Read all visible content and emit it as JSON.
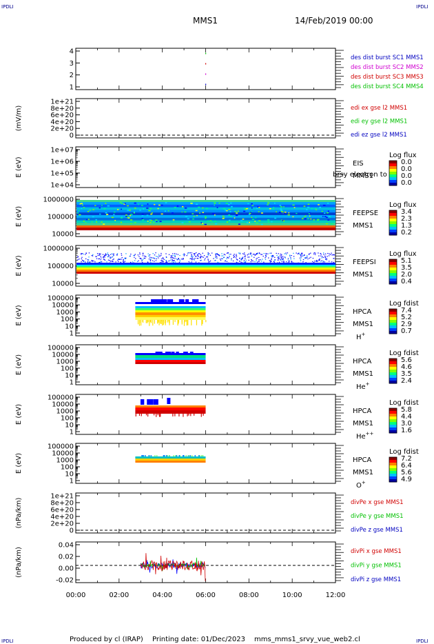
{
  "header": {
    "corner_label": "IPDLI",
    "mission": "MMS1",
    "datetime": "14/Feb/2019 00:00"
  },
  "footer": {
    "produced_by": "Produced by cl (IRAP)",
    "printing_date": "Printing date: 01/Dec/2023",
    "script_name": "mms_mms1_srvy_vue_web2.cl"
  },
  "chart_data": [
    {
      "type": "line",
      "panel": "des_dist_burst",
      "yticks": [
        "4",
        "3",
        "2",
        "1"
      ],
      "ylim": [
        0.5,
        4.5
      ],
      "legend": [
        {
          "label": "des dist burst SC1 MMS1",
          "color": "#0000c0"
        },
        {
          "label": "des dist burst SC2 MMS2",
          "color": "#d000d0"
        },
        {
          "label": "des dist burst SC3 MMS3",
          "color": "#d00000"
        },
        {
          "label": "des dist burst SC4 MMS4",
          "color": "#00c000"
        }
      ],
      "series": [
        {
          "name": "des dist burst SC1 MMS1",
          "x": [
            6.0
          ],
          "y": [
            1
          ]
        },
        {
          "name": "des dist burst SC2 MMS2",
          "x": [
            6.0
          ],
          "y": [
            2
          ]
        },
        {
          "name": "des dist burst SC3 MMS3",
          "x": [
            6.0
          ],
          "y": [
            3
          ]
        },
        {
          "name": "des dist burst SC4 MMS4",
          "x": [
            6.0
          ],
          "y": [
            4
          ]
        }
      ]
    },
    {
      "type": "line",
      "panel": "edi_e_gse",
      "ylabel": "(mV/m)",
      "yticks": [
        "1e+21",
        "8e+20",
        "6e+20",
        "4e+20",
        "2e+20",
        "0"
      ],
      "ylim": [
        0,
        1e+21
      ],
      "zero_line": true,
      "legend": [
        {
          "label": "edi ex gse l2 MMS1",
          "color": "#d00000"
        },
        {
          "label": "edi ey gse l2 MMS1",
          "color": "#00c000"
        },
        {
          "label": "edi ez gse l2 MMS1",
          "color": "#0000c0"
        }
      ]
    },
    {
      "type": "heatmap",
      "panel": "eis",
      "ylabel": "E (eV)",
      "yticks": [
        "1e+07",
        "1e+06",
        "1e+05",
        "1e+04"
      ],
      "ylim": [
        10000.0,
        10000000.0
      ],
      "log_y": true,
      "instrument": "EIS",
      "spacecraft": "MMS1",
      "overlay_text": "brsy electron to",
      "colorbar": {
        "title": "Log flux",
        "ticks": [
          "0.0",
          "0.0",
          "0.0",
          "0.0"
        ]
      }
    },
    {
      "type": "heatmap",
      "panel": "feeps_electron",
      "ylabel": "E (eV)",
      "yticks": [
        "1000000",
        "100000",
        "10000"
      ],
      "ylim": [
        10000.0,
        1000000.0
      ],
      "log_y": true,
      "instrument": "FEEPSE",
      "spacecraft": "MMS1",
      "colorbar": {
        "title": "Log flux",
        "ticks": [
          "3.4",
          "2.3",
          "1.3",
          "0.2"
        ]
      },
      "coverage_hours": [
        0,
        12
      ]
    },
    {
      "type": "heatmap",
      "panel": "feeps_ion",
      "ylabel": "E (eV)",
      "yticks": [
        "1000000",
        "100000",
        "10000"
      ],
      "ylim": [
        10000.0,
        1000000.0
      ],
      "log_y": true,
      "instrument": "FEEPSI",
      "spacecraft": "MMS1",
      "colorbar": {
        "title": "Log flux",
        "ticks": [
          "5.1",
          "3.5",
          "2.0",
          "0.4"
        ]
      },
      "coverage_hours": [
        0,
        12
      ]
    },
    {
      "type": "heatmap",
      "panel": "hpca_h",
      "ylabel": "E (eV)",
      "yticks": [
        "100000",
        "10000",
        "1000",
        "100",
        "10",
        "1"
      ],
      "ylim": [
        1,
        100000.0
      ],
      "log_y": true,
      "instrument": "HPCA",
      "spacecraft": "MMS1",
      "species": "H",
      "species_sup": "+",
      "colorbar": {
        "title": "Log fdist",
        "ticks": [
          "7.4",
          "5.2",
          "2.9",
          "0.7"
        ]
      },
      "coverage_hours": [
        2.75,
        6.0
      ]
    },
    {
      "type": "heatmap",
      "panel": "hpca_he",
      "ylabel": "E (eV)",
      "yticks": [
        "100000",
        "10000",
        "1000",
        "100",
        "10",
        "1"
      ],
      "ylim": [
        1,
        100000.0
      ],
      "log_y": true,
      "instrument": "HPCA",
      "spacecraft": "MMS1",
      "species": "He",
      "species_sup": "+",
      "colorbar": {
        "title": "Log fdist",
        "ticks": [
          "5.6",
          "4.6",
          "3.5",
          "2.4"
        ]
      },
      "coverage_hours": [
        2.75,
        6.0
      ]
    },
    {
      "type": "heatmap",
      "panel": "hpca_hepp",
      "ylabel": "E (eV)",
      "yticks": [
        "100000",
        "10000",
        "1000",
        "100",
        "10",
        "1"
      ],
      "ylim": [
        1,
        100000.0
      ],
      "log_y": true,
      "instrument": "HPCA",
      "spacecraft": "MMS1",
      "species": "He",
      "species_sup": "++",
      "colorbar": {
        "title": "Log fdist",
        "ticks": [
          "5.8",
          "4.4",
          "3.0",
          "1.6"
        ]
      },
      "coverage_hours": [
        2.75,
        6.0
      ]
    },
    {
      "type": "heatmap",
      "panel": "hpca_o",
      "ylabel": "E (eV)",
      "yticks": [
        "100000",
        "10000",
        "1000",
        "100",
        "10",
        "1"
      ],
      "ylim": [
        1,
        100000.0
      ],
      "log_y": true,
      "instrument": "HPCA",
      "spacecraft": "MMS1",
      "species": "O",
      "species_sup": "+",
      "colorbar": {
        "title": "Log fdist",
        "ticks": [
          "7.2",
          "6.4",
          "5.6",
          "4.9"
        ]
      },
      "coverage_hours": [
        2.75,
        6.0
      ]
    },
    {
      "type": "line",
      "panel": "divpe",
      "ylabel": "(nPa/km)",
      "yticks": [
        "1e+21",
        "8e+20",
        "6e+20",
        "4e+20",
        "2e+20",
        "0"
      ],
      "ylim": [
        0,
        1e+21
      ],
      "zero_line": true,
      "legend": [
        {
          "label": "divPe x gse MMS1",
          "color": "#d00000"
        },
        {
          "label": "divPe y gse MMS1",
          "color": "#00c000"
        },
        {
          "label": "divPe z gse MMS1",
          "color": "#0000c0"
        }
      ]
    },
    {
      "type": "line",
      "panel": "divpi",
      "ylabel": "(nPa/km)",
      "yticks": [
        "0.04",
        "0.02",
        "0.00",
        "-0.02"
      ],
      "ylim": [
        -0.03,
        0.045
      ],
      "zero_line": true,
      "legend": [
        {
          "label": "divPi x gse MMS1",
          "color": "#d00000"
        },
        {
          "label": "divPi y gse MMS1",
          "color": "#00c000"
        },
        {
          "label": "divPi z gse MMS1",
          "color": "#0000c0"
        }
      ],
      "coverage_hours": [
        3.0,
        6.0
      ]
    }
  ],
  "x_axis": {
    "ticks": [
      "00:00",
      "02:00",
      "04:00",
      "06:00",
      "08:00",
      "10:00",
      "12:00"
    ],
    "range_hours": [
      0,
      12
    ]
  }
}
